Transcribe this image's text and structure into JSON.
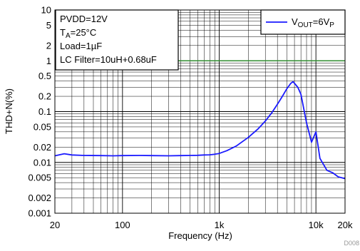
{
  "figure_id": "D008",
  "conditions": [
    "PVDD=12V",
    "TA=25°C",
    "Load=1µF",
    "LC Filter=10uH+0.68uF"
  ],
  "chart_data": {
    "type": "line",
    "xlabel": "Frequency (Hz)",
    "ylabel": "THD+N(%)",
    "xscale": "log",
    "yscale": "log",
    "xlim": [
      20,
      20000
    ],
    "ylim": [
      0.001,
      10
    ],
    "grid": true,
    "legend_position": "top-right",
    "x_tick_values": [
      20,
      100,
      1000,
      10000,
      20000
    ],
    "x_tick_labels": [
      "20",
      "100",
      "1k",
      "10k",
      "20k"
    ],
    "y_tick_values": [
      10,
      5,
      2,
      1,
      0.5,
      0.2,
      0.1,
      0.05,
      0.02,
      0.01,
      0.005,
      0.002,
      0.001
    ],
    "y_tick_labels": [
      "10",
      "5",
      "2",
      "1",
      "0.5",
      "0.2",
      "0.1",
      "0.05",
      "0.02",
      "0.01",
      "0.005",
      "0.002",
      "0.001"
    ],
    "reference_line": {
      "y": 1,
      "color": "#2e8b2e"
    },
    "series": [
      {
        "name": "VOUT=6VP",
        "color": "#1a1aff",
        "x": [
          20,
          25,
          30,
          40,
          60,
          80,
          100,
          150,
          200,
          300,
          400,
          500,
          600,
          700,
          800,
          900,
          1000,
          1200,
          1500,
          2000,
          2500,
          3000,
          3500,
          4000,
          4500,
          5000,
          5500,
          5800,
          6500,
          7000,
          8000,
          9000,
          10000,
          11000,
          13000,
          15000,
          17000,
          20000
        ],
        "y": [
          0.0135,
          0.0148,
          0.014,
          0.0137,
          0.0136,
          0.0135,
          0.0136,
          0.0137,
          0.0136,
          0.0135,
          0.0136,
          0.0137,
          0.0138,
          0.014,
          0.0141,
          0.0145,
          0.015,
          0.017,
          0.021,
          0.031,
          0.045,
          0.065,
          0.095,
          0.14,
          0.2,
          0.28,
          0.36,
          0.39,
          0.3,
          0.22,
          0.06,
          0.025,
          0.04,
          0.012,
          0.007,
          0.0062,
          0.0052,
          0.0048
        ]
      }
    ]
  }
}
